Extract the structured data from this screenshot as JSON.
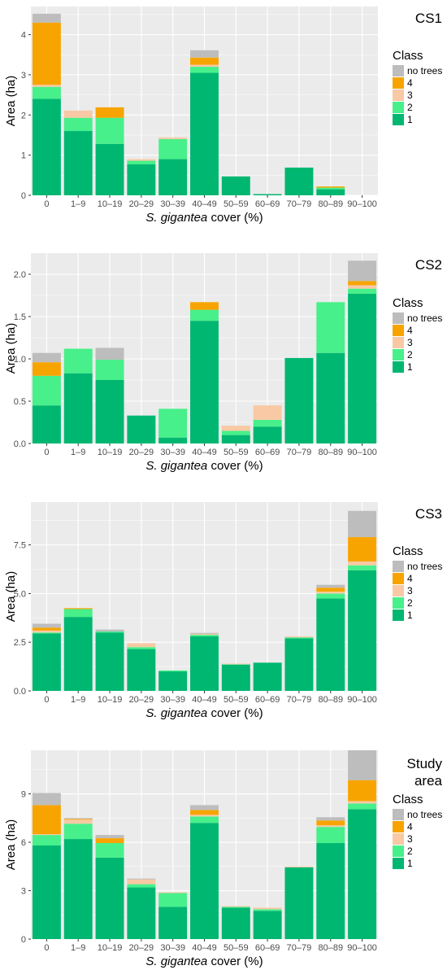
{
  "colors": {
    "1": "#00b771",
    "2": "#47f08a",
    "3": "#f8c9a4",
    "4": "#f8a400",
    "no trees": "#bdbdbd",
    "panel_bg": "#ebebeb",
    "grid": "#ffffff"
  },
  "legend": {
    "title": "Class",
    "items": [
      "no trees",
      "4",
      "3",
      "2",
      "1"
    ]
  },
  "chart_data": [
    {
      "type": "bar",
      "stacked": true,
      "title": "CS1",
      "xlabel_italic": "S. gigantea",
      "xlabel_rest": " cover (%)",
      "ylabel": "Area (ha)",
      "ylim": [
        0,
        4.7
      ],
      "yticks": [
        0,
        1,
        2,
        3,
        4
      ],
      "categories": [
        "0",
        "1–9",
        "10–19",
        "20–29",
        "30–39",
        "40–49",
        "50–59",
        "60–69",
        "70–79",
        "80–89",
        "90–100"
      ],
      "series": [
        {
          "name": "1",
          "values": [
            2.4,
            1.6,
            1.28,
            0.77,
            0.9,
            3.05,
            0.47,
            0.03,
            0.69,
            0.15,
            0
          ]
        },
        {
          "name": "2",
          "values": [
            0.3,
            0.33,
            0.65,
            0.09,
            0.5,
            0.15,
            0,
            0,
            0,
            0.04,
            0
          ]
        },
        {
          "name": "3",
          "values": [
            0.05,
            0.18,
            0,
            0.04,
            0.04,
            0.05,
            0,
            0,
            0,
            0,
            0
          ]
        },
        {
          "name": "4",
          "values": [
            1.55,
            0,
            0.26,
            0,
            0,
            0.18,
            0,
            0,
            0,
            0.03,
            0
          ]
        },
        {
          "name": "no trees",
          "values": [
            0.22,
            0,
            0,
            0,
            0,
            0.18,
            0,
            0,
            0,
            0,
            0
          ]
        }
      ]
    },
    {
      "type": "bar",
      "stacked": true,
      "title": "CS2",
      "xlabel_italic": "S. gigantea",
      "xlabel_rest": " cover (%)",
      "ylabel": "Area (ha)",
      "ylim": [
        0,
        2.25
      ],
      "yticks": [
        0.0,
        0.5,
        1.0,
        1.5,
        2.0
      ],
      "ytick_labels": [
        "0.0",
        "0.5",
        "1.0",
        "1.5",
        "2.0"
      ],
      "categories": [
        "0",
        "1–9",
        "10–19",
        "20–29",
        "30–39",
        "40–49",
        "50–59",
        "60–69",
        "70–79",
        "80–89",
        "90–100"
      ],
      "series": [
        {
          "name": "1",
          "values": [
            0.45,
            0.83,
            0.75,
            0.33,
            0.07,
            1.45,
            0.1,
            0.2,
            1.01,
            1.07,
            1.77
          ]
        },
        {
          "name": "2",
          "values": [
            0.35,
            0.29,
            0.24,
            0,
            0.34,
            0.13,
            0.05,
            0.08,
            0,
            0.6,
            0.06
          ]
        },
        {
          "name": "3",
          "values": [
            0,
            0,
            0,
            0,
            0,
            0,
            0.06,
            0.17,
            0,
            0,
            0.04
          ]
        },
        {
          "name": "4",
          "values": [
            0.16,
            0,
            0,
            0,
            0,
            0.09,
            0,
            0,
            0,
            0,
            0.05
          ]
        },
        {
          "name": "no trees",
          "values": [
            0.11,
            0,
            0.14,
            0,
            0,
            0,
            0,
            0,
            0,
            0,
            0.24
          ]
        }
      ]
    },
    {
      "type": "bar",
      "stacked": true,
      "title": "CS3",
      "xlabel_italic": "S. gigantea",
      "xlabel_rest": " cover (%)",
      "ylabel": "Area (ha)",
      "ylim": [
        0,
        9.7
      ],
      "yticks": [
        0.0,
        2.5,
        5.0,
        7.5
      ],
      "ytick_labels": [
        "0.0",
        "2.5",
        "5.0",
        "7.5"
      ],
      "categories": [
        "0",
        "1–9",
        "10–19",
        "20–29",
        "30–39",
        "40–49",
        "50–59",
        "60–69",
        "70–79",
        "80–89",
        "90–100"
      ],
      "series": [
        {
          "name": "1",
          "values": [
            2.95,
            3.8,
            3.0,
            2.15,
            1.0,
            2.8,
            1.35,
            1.45,
            2.7,
            4.75,
            6.2
          ]
        },
        {
          "name": "2",
          "values": [
            0.05,
            0.4,
            0.05,
            0.1,
            0.05,
            0.08,
            0.02,
            0,
            0.05,
            0.25,
            0.25
          ]
        },
        {
          "name": "3",
          "values": [
            0.1,
            0,
            0,
            0.2,
            0,
            0.05,
            0.03,
            0,
            0.05,
            0.1,
            0.2
          ]
        },
        {
          "name": "4",
          "values": [
            0.15,
            0.05,
            0,
            0,
            0,
            0,
            0,
            0,
            0,
            0.2,
            1.25
          ]
        },
        {
          "name": "no trees",
          "values": [
            0.2,
            0,
            0.1,
            0,
            0,
            0.05,
            0,
            0,
            0,
            0.15,
            1.35
          ]
        }
      ]
    },
    {
      "type": "bar",
      "stacked": true,
      "title_lines": [
        "Study",
        "area"
      ],
      "xlabel_italic": "S. gigantea",
      "xlabel_rest": " cover (%)",
      "ylabel": "Area (ha)",
      "ylim": [
        0,
        11.7
      ],
      "yticks": [
        0,
        3,
        6,
        9
      ],
      "categories": [
        "0",
        "1–9",
        "10–19",
        "20–29",
        "30–39",
        "40–49",
        "50–59",
        "60–69",
        "70–79",
        "80–89",
        "90–100"
      ],
      "series": [
        {
          "name": "1",
          "values": [
            5.8,
            6.2,
            5.05,
            3.2,
            2.0,
            7.2,
            1.95,
            1.75,
            4.45,
            5.95,
            8.05
          ]
        },
        {
          "name": "2",
          "values": [
            0.65,
            0.95,
            0.9,
            0.2,
            0.85,
            0.4,
            0.05,
            0.1,
            0,
            1.0,
            0.35
          ]
        },
        {
          "name": "3",
          "values": [
            0.05,
            0.25,
            0,
            0.3,
            0.05,
            0.1,
            0.05,
            0.1,
            0.05,
            0.1,
            0.15
          ]
        },
        {
          "name": "4",
          "values": [
            1.8,
            0.05,
            0.3,
            0,
            0,
            0.3,
            0,
            0,
            0,
            0.3,
            1.3
          ]
        },
        {
          "name": "no trees",
          "values": [
            0.75,
            0.05,
            0.2,
            0.05,
            0,
            0.3,
            0,
            0,
            0,
            0.2,
            1.85
          ]
        }
      ]
    }
  ]
}
